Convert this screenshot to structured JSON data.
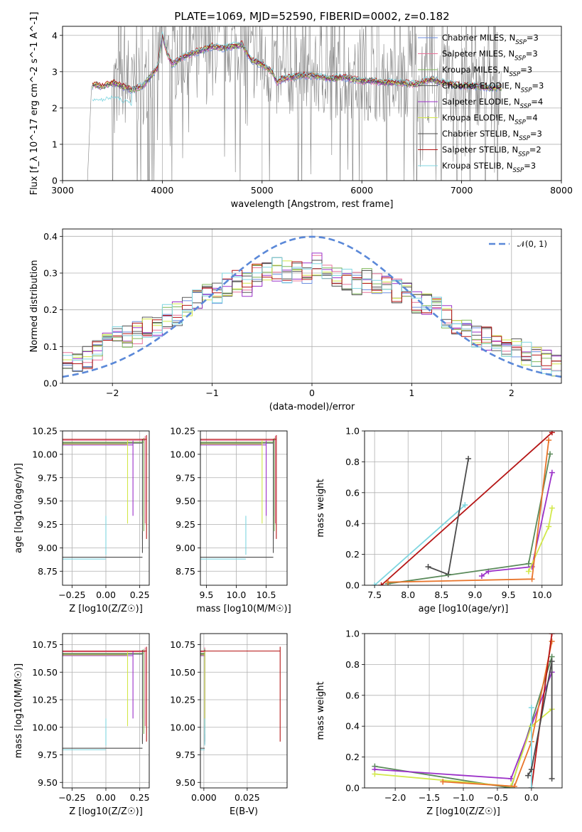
{
  "figure": {
    "title": "PLATE=1069, MJD=52590, FIBERID=0002, z=0.182"
  },
  "model_colors": {
    "Chabrier MILES": "#6d8fe0",
    "Salpeter MILES": "#e8739a",
    "Kroupa MILES": "#7fb85a",
    "Chabrier ELODIE": "#5a5a5a",
    "Salpeter ELODIE": "#9b30c8",
    "Kroupa ELODIE": "#d2e84a",
    "Chabrier STELIB": "#4b4b4b",
    "Salpeter STELIB": "#b51515",
    "Kroupa STELIB": "#7fd6e0",
    "observed": "#808080",
    "gaussian": "#5a88d8",
    "orange": "#e8742a",
    "green": "#5a8a5a"
  },
  "chart_data": [
    {
      "id": "spectrum",
      "type": "line",
      "xlabel": "wavelength [Angstrom, rest frame]",
      "ylabel": "Flux [f_λ 10^-17 erg cm^-2 s^-1 A^-1]",
      "xlim": [
        3000,
        8000
      ],
      "ylim": [
        0,
        4.25
      ],
      "xticks": [
        "3000",
        "4000",
        "5000",
        "6000",
        "7000",
        "8000"
      ],
      "yticks": [
        "0",
        "1",
        "2",
        "3",
        "4"
      ],
      "legend": [
        "Chabrier MILES, N_SSP=3",
        "Salpeter MILES, N_SSP=3",
        "Kroupa MILES, N_SSP=3",
        "Chabrier ELODIE, N_SSP=3",
        "Salpeter ELODIE, N_SSP=4",
        "Kroupa ELODIE, N_SSP=4",
        "Chabrier STELIB, N_SSP=3",
        "Salpeter STELIB, N_SSP=2",
        "Kroupa STELIB, N_SSP=3"
      ],
      "model_curve": {
        "x": [
          3250,
          3290,
          3320,
          3400,
          3500,
          3600,
          3700,
          3800,
          3850,
          3950,
          4000,
          4050,
          4100,
          4200,
          4300,
          4400,
          4500,
          4600,
          4700,
          4800,
          4850,
          4900,
          5000,
          5100,
          5150,
          5200,
          5300,
          5400,
          5500,
          5600,
          5700,
          5800,
          5900,
          6000,
          6100,
          6200,
          6300,
          6400,
          6500,
          6600,
          6700,
          6800,
          6900,
          7000,
          7100,
          7200,
          7300,
          7400
        ],
        "y": [
          0.0,
          2.6,
          2.65,
          2.6,
          2.7,
          2.6,
          2.5,
          2.6,
          2.75,
          3.1,
          4.0,
          3.5,
          3.2,
          3.4,
          3.5,
          3.6,
          3.7,
          3.65,
          3.7,
          3.75,
          3.5,
          3.3,
          3.2,
          3.0,
          2.7,
          2.8,
          2.85,
          2.9,
          2.9,
          2.85,
          2.8,
          2.85,
          2.8,
          2.75,
          2.75,
          2.7,
          2.7,
          2.7,
          2.65,
          2.7,
          2.8,
          2.7,
          2.65,
          2.6,
          2.6,
          2.6,
          2.55,
          2.55
        ]
      },
      "observed_range": [
        3250,
        7400
      ]
    },
    {
      "id": "residuals",
      "type": "line",
      "xlabel": "(data-model)/error",
      "ylabel": "Normed distribution",
      "xlim": [
        -2.5,
        2.5
      ],
      "ylim": [
        0,
        0.42
      ],
      "xticks": [
        "−2",
        "−1",
        "0",
        "1",
        "2"
      ],
      "yticks": [
        "0.0",
        "0.1",
        "0.2",
        "0.3",
        "0.4"
      ],
      "legend": [
        "𝒩(0, 1)"
      ],
      "base_hist": [
        0.05,
        0.06,
        0.07,
        0.09,
        0.11,
        0.13,
        0.13,
        0.14,
        0.15,
        0.16,
        0.18,
        0.19,
        0.2,
        0.22,
        0.24,
        0.25,
        0.27,
        0.28,
        0.27,
        0.29,
        0.3,
        0.31,
        0.3,
        0.31,
        0.3,
        0.32,
        0.3,
        0.29,
        0.28,
        0.27,
        0.28,
        0.27,
        0.26,
        0.25,
        0.24,
        0.22,
        0.21,
        0.2,
        0.18,
        0.16,
        0.15,
        0.13,
        0.12,
        0.11,
        0.1,
        0.09,
        0.08,
        0.07,
        0.06,
        0.05
      ]
    },
    {
      "id": "age-vs-Z",
      "type": "scatter",
      "xlabel": "Z [log10(Z/Z☉)]",
      "ylabel": "age  [log10(age/yr)]",
      "xlim": [
        -0.32,
        0.32
      ],
      "ylim": [
        8.6,
        10.25
      ],
      "xticks": [
        "−0.25",
        "0.00",
        "0.25"
      ],
      "yticks": [
        "8.75",
        "9.00",
        "9.25",
        "9.50",
        "9.75",
        "10.00",
        "10.25"
      ],
      "bars": [
        {
          "color": "Chabrier MILES",
          "x": 0.27,
          "y": 10.12
        },
        {
          "color": "Salpeter MILES",
          "x": 0.29,
          "y": 10.15
        },
        {
          "color": "Kroupa MILES",
          "x": 0.28,
          "y": 10.13
        },
        {
          "color": "Chabrier ELODIE",
          "x": 0.27,
          "y": 10.12
        },
        {
          "color": "Salpeter ELODIE",
          "x": 0.2,
          "y": 10.1
        },
        {
          "color": "Kroupa ELODIE",
          "x": 0.16,
          "y": 10.11
        },
        {
          "color": "Chabrier STELIB",
          "x": 0.27,
          "y": 8.9
        },
        {
          "color": "Salpeter STELIB",
          "x": 0.3,
          "y": 10.16
        },
        {
          "color": "Kroupa STELIB",
          "x": 0.0,
          "y": 8.88
        }
      ]
    },
    {
      "id": "age-vs-mass",
      "type": "scatter",
      "xlabel": "mass [log10(M/M☉)]",
      "ylabel": "",
      "xlim": [
        9.4,
        10.85
      ],
      "ylim": [
        8.6,
        10.25
      ],
      "xticks": [
        "9.5",
        "10.0",
        "10.5"
      ],
      "yticks": [
        "8.75",
        "9.00",
        "9.25",
        "9.50",
        "9.75",
        "10.00",
        "10.25"
      ]
    },
    {
      "id": "mass-weight-vs-age",
      "type": "line",
      "xlabel": "age  [log10(age/yr)]",
      "ylabel": "mass weight",
      "xlim": [
        7.35,
        10.3
      ],
      "ylim": [
        0,
        1.0
      ],
      "xticks": [
        "7.5",
        "8.0",
        "8.5",
        "9.0",
        "9.5",
        "10.0"
      ],
      "yticks": [
        "0.0",
        "0.2",
        "0.4",
        "0.6",
        "0.8",
        "1.0"
      ],
      "series": [
        {
          "color": "Salpeter STELIB",
          "x": [
            7.6,
            10.15
          ],
          "y": [
            0.0,
            0.99
          ]
        },
        {
          "color": "Kroupa STELIB",
          "x": [
            7.5,
            8.85
          ],
          "y": [
            0.0,
            0.52
          ]
        },
        {
          "color": "Chabrier STELIB",
          "x": [
            8.3,
            8.6,
            8.9
          ],
          "y": [
            0.12,
            0.07,
            0.82
          ]
        },
        {
          "color": "Salpeter ELODIE",
          "x": [
            9.1,
            9.2,
            9.85,
            10.15
          ],
          "y": [
            0.06,
            0.09,
            0.12,
            0.73
          ]
        },
        {
          "color": "Kroupa ELODIE",
          "x": [
            9.8,
            10.1,
            10.15
          ],
          "y": [
            0.09,
            0.38,
            0.5
          ]
        },
        {
          "color": "green",
          "x": [
            7.7,
            9.8,
            10.12
          ],
          "y": [
            0.01,
            0.14,
            0.85
          ]
        },
        {
          "color": "orange",
          "x": [
            7.7,
            9.85,
            10.1
          ],
          "y": [
            0.02,
            0.04,
            0.94
          ]
        }
      ]
    },
    {
      "id": "mass-vs-Z",
      "type": "scatter",
      "xlabel": "Z [log10(Z/Z☉)]",
      "ylabel": "mass [log10(M/M☉)]",
      "xlim": [
        -0.32,
        0.32
      ],
      "ylim": [
        9.45,
        10.85
      ],
      "xticks": [
        "−0.25",
        "0.00",
        "0.25"
      ],
      "yticks": [
        "9.50",
        "9.75",
        "10.00",
        "10.25",
        "10.50",
        "10.75"
      ]
    },
    {
      "id": "mass-vs-EBV",
      "type": "scatter",
      "xlabel": "E(B-V)",
      "ylabel": "",
      "xlim": [
        -0.002,
        0.048
      ],
      "ylim": [
        9.45,
        10.85
      ],
      "xticks": [
        "0.000",
        "0.025"
      ],
      "yticks": [
        "9.50",
        "9.75",
        "10.00",
        "10.25",
        "10.50",
        "10.75"
      ]
    },
    {
      "id": "mass-weight-vs-Z",
      "type": "line",
      "xlabel": "Z [log10(Z/Z☉)]",
      "ylabel": "mass weight",
      "xlim": [
        -2.45,
        0.45
      ],
      "ylim": [
        0,
        1.0
      ],
      "xticks": [
        "−2.0",
        "−1.5",
        "−1.0",
        "−0.5",
        "0.0"
      ],
      "yticks": [
        "0.0",
        "0.2",
        "0.4",
        "0.6",
        "0.8",
        "1.0"
      ],
      "series": [
        {
          "color": "green",
          "x": [
            -2.3,
            -0.3,
            0.3
          ],
          "y": [
            0.14,
            0.0,
            0.85
          ]
        },
        {
          "color": "Salpeter ELODIE",
          "x": [
            -2.3,
            -0.3,
            0.3
          ],
          "y": [
            0.12,
            0.06,
            0.75
          ]
        },
        {
          "color": "Kroupa ELODIE",
          "x": [
            -2.3,
            -0.3,
            0.0,
            0.3
          ],
          "y": [
            0.09,
            0.01,
            0.4,
            0.51
          ]
        },
        {
          "color": "orange",
          "x": [
            -1.3,
            -0.25,
            0.0,
            0.3
          ],
          "y": [
            0.04,
            0.01,
            0.3,
            0.95
          ]
        },
        {
          "color": "Salpeter STELIB",
          "x": [
            0.0,
            0.3
          ],
          "y": [
            0.0,
            1.0
          ]
        },
        {
          "color": "Kroupa STELIB",
          "x": [
            0.0,
            0.0
          ],
          "y": [
            0.0,
            0.52
          ]
        },
        {
          "color": "Chabrier STELIB",
          "x": [
            -0.05,
            0.0,
            0.3,
            0.3
          ],
          "y": [
            0.08,
            0.12,
            0.82,
            0.06
          ]
        }
      ]
    }
  ]
}
